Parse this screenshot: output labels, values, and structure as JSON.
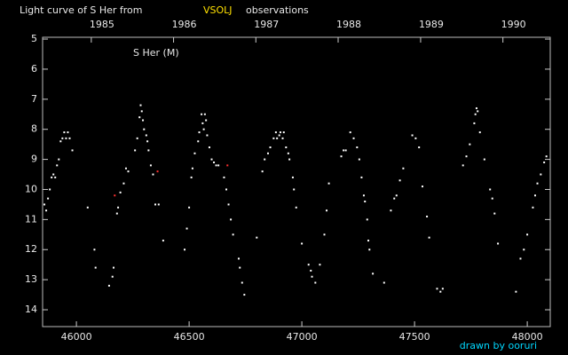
{
  "chart_data": {
    "type": "scatter",
    "title": "Light curve of S Her from",
    "title_source": "VSOLJ",
    "title_suffix": "observations",
    "source_color": "#ffe000",
    "annotation": "S Her (M)",
    "credit": "drawn by ooruri",
    "credit_color": "#00d8ff",
    "xlim": [
      45850,
      48102
    ],
    "xticks": [
      46000,
      46500,
      47000,
      47500,
      48000
    ],
    "x2ticks": [
      {
        "value": 46066,
        "label": "1985"
      },
      {
        "value": 46431,
        "label": "1986"
      },
      {
        "value": 46796,
        "label": "1987"
      },
      {
        "value": 47161,
        "label": "1988"
      },
      {
        "value": 47527,
        "label": "1989"
      },
      {
        "value": 47892,
        "label": "1990"
      }
    ],
    "ylim": [
      4.94,
      14.56
    ],
    "yticks": [
      5,
      6,
      7,
      8,
      9,
      10,
      11,
      12,
      13,
      14
    ],
    "invert_y": true,
    "grid": false,
    "series": [
      {
        "color": "#ffffff",
        "x": [
          45858,
          45866,
          45874,
          45882,
          45890,
          45898,
          45906,
          45914,
          45922,
          45930,
          45938,
          45946,
          45954,
          45962,
          45970,
          45982,
          46050,
          46080,
          46085,
          46145,
          46160,
          46165,
          46180,
          46185,
          46195,
          46210,
          46220,
          46230,
          46260,
          46270,
          46280,
          46285,
          46290,
          46295,
          46300,
          46310,
          46315,
          46320,
          46330,
          46340,
          46350,
          46365,
          46385,
          46480,
          46490,
          46500,
          46510,
          46515,
          46525,
          46540,
          46545,
          46555,
          46560,
          46565,
          46570,
          46575,
          46580,
          46590,
          46600,
          46610,
          46620,
          46630,
          46655,
          46665,
          46675,
          46685,
          46695,
          46720,
          46725,
          46735,
          46745,
          46800,
          46825,
          46835,
          46850,
          46860,
          46875,
          46885,
          46890,
          46900,
          46905,
          46915,
          46920,
          46930,
          46940,
          46945,
          46960,
          46965,
          46975,
          47000,
          47030,
          47040,
          47045,
          47060,
          47080,
          47100,
          47110,
          47120,
          47175,
          47185,
          47195,
          47215,
          47230,
          47245,
          47255,
          47265,
          47275,
          47280,
          47290,
          47295,
          47300,
          47315,
          47365,
          47395,
          47410,
          47420,
          47435,
          47450,
          47490,
          47505,
          47520,
          47535,
          47555,
          47565,
          47600,
          47615,
          47625,
          47715,
          47730,
          47745,
          47765,
          47770,
          47775,
          47780,
          47790,
          47810,
          47835,
          47845,
          47855,
          47870,
          47950,
          47970,
          47985,
          48000,
          48025,
          48035,
          48045,
          48060,
          48075,
          48085
        ],
        "values": [
          10.5,
          10.7,
          10.3,
          10.0,
          9.6,
          9.5,
          9.6,
          9.2,
          9.0,
          8.4,
          8.3,
          8.1,
          8.3,
          8.1,
          8.3,
          8.7,
          10.6,
          12.0,
          12.6,
          13.2,
          12.9,
          12.6,
          10.8,
          10.6,
          10.1,
          9.8,
          9.3,
          9.4,
          8.7,
          8.3,
          7.6,
          7.2,
          7.4,
          7.7,
          8.0,
          8.2,
          8.4,
          8.7,
          9.2,
          9.5,
          10.5,
          10.5,
          11.7,
          12.0,
          11.3,
          10.6,
          9.6,
          9.3,
          8.8,
          8.4,
          8.1,
          7.5,
          7.8,
          8.0,
          7.5,
          7.7,
          8.2,
          8.6,
          9.0,
          9.1,
          9.2,
          9.2,
          9.6,
          10.0,
          10.5,
          11.0,
          11.5,
          12.3,
          12.6,
          13.1,
          13.5,
          11.6,
          9.4,
          9.0,
          8.8,
          8.6,
          8.3,
          8.1,
          8.3,
          8.2,
          8.1,
          8.3,
          8.1,
          8.6,
          8.8,
          9.0,
          9.6,
          10.0,
          10.6,
          11.8,
          12.5,
          12.7,
          12.9,
          13.1,
          12.5,
          11.5,
          10.7,
          9.8,
          8.9,
          8.7,
          8.7,
          8.1,
          8.3,
          8.6,
          9.0,
          9.6,
          10.2,
          10.4,
          11.0,
          11.7,
          12.0,
          12.8,
          13.1,
          10.7,
          10.3,
          10.2,
          9.7,
          9.3,
          8.2,
          8.3,
          8.6,
          9.9,
          10.9,
          11.6,
          13.3,
          13.4,
          13.3,
          9.2,
          8.9,
          8.5,
          7.8,
          7.5,
          7.3,
          7.4,
          8.1,
          9.0,
          10.0,
          10.3,
          10.8,
          11.8,
          13.4,
          12.3,
          12.0,
          11.5,
          10.6,
          10.2,
          9.8,
          9.5,
          9.1,
          8.9
        ]
      },
      {
        "color": "#ff3030",
        "x": [
          46170,
          46360,
          46670
        ],
        "values": [
          10.2,
          9.4,
          9.2
        ]
      }
    ]
  }
}
